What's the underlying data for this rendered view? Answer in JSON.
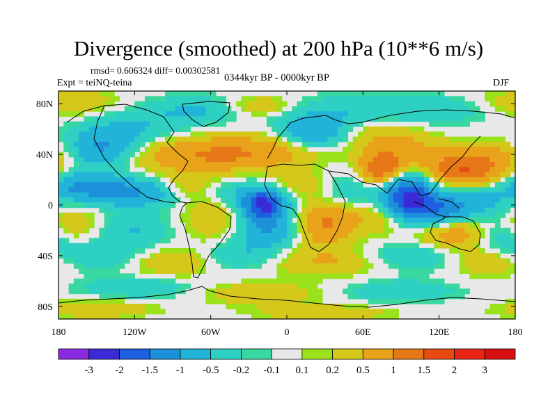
{
  "header": {
    "title": "Divergence (smoothed) at 200 hPa (10**6 m/s)",
    "stats": "rmsd= 0.606324  diff= 0.00302581",
    "experiment": "Expt = teiNQ-teina",
    "period": "0344kyr BP - 0000kyr BP",
    "season": "DJF"
  },
  "chart_data": {
    "type": "heatmap",
    "title": "Divergence (smoothed) at 200 hPa (10**6 m/s)",
    "xlabel": "",
    "ylabel": "",
    "xlim": [
      -180,
      180
    ],
    "ylim": [
      -90,
      90
    ],
    "x_ticks": [
      {
        "value": -180,
        "label": "180"
      },
      {
        "value": -120,
        "label": "120W"
      },
      {
        "value": -60,
        "label": "60W"
      },
      {
        "value": 0,
        "label": "0"
      },
      {
        "value": 60,
        "label": "60E"
      },
      {
        "value": 120,
        "label": "120E"
      },
      {
        "value": 180,
        "label": "180"
      }
    ],
    "y_ticks": [
      {
        "value": 80,
        "label": "80N"
      },
      {
        "value": 40,
        "label": "40N"
      },
      {
        "value": 0,
        "label": "0"
      },
      {
        "value": -40,
        "label": "40S"
      },
      {
        "value": -80,
        "label": "80S"
      }
    ],
    "colorbar": {
      "levels": [
        "-3",
        "-2",
        "-1.5",
        "-1",
        "-0.5",
        "-0.2",
        "-0.1",
        "0.1",
        "0.2",
        "0.5",
        "1",
        "1.5",
        "2",
        "3"
      ],
      "colors": [
        "#8a2be2",
        "#3a2bd6",
        "#1e5fe0",
        "#1c90d8",
        "#22b4d8",
        "#2fd0c4",
        "#39d8a0",
        "#e8e8e8",
        "#9be21c",
        "#d6c81a",
        "#e8a31a",
        "#e67818",
        "#e84a14",
        "#e82414",
        "#d61010"
      ]
    },
    "fields": [
      {
        "lon": -170,
        "lat": 80,
        "value": 0.5,
        "sx": 30,
        "sy": 8
      },
      {
        "lon": -120,
        "lat": 62,
        "value": -0.5,
        "sx": 30,
        "sy": 12
      },
      {
        "lon": -70,
        "lat": 75,
        "value": -0.5,
        "sx": 25,
        "sy": 8
      },
      {
        "lon": -20,
        "lat": 78,
        "value": 0.5,
        "sx": 20,
        "sy": 6
      },
      {
        "lon": 30,
        "lat": 70,
        "value": -0.5,
        "sx": 30,
        "sy": 10
      },
      {
        "lon": 110,
        "lat": 75,
        "value": -0.5,
        "sx": 40,
        "sy": 8
      },
      {
        "lon": -145,
        "lat": 45,
        "value": -1,
        "sx": 20,
        "sy": 10
      },
      {
        "lon": -100,
        "lat": 40,
        "value": 0.5,
        "sx": 25,
        "sy": 10
      },
      {
        "lon": -50,
        "lat": 40,
        "value": 1,
        "sx": 30,
        "sy": 10
      },
      {
        "lon": 0,
        "lat": 45,
        "value": 0.5,
        "sx": 25,
        "sy": 10
      },
      {
        "lon": 20,
        "lat": 55,
        "value": -1,
        "sx": 20,
        "sy": 8
      },
      {
        "lon": 70,
        "lat": 55,
        "value": 0.5,
        "sx": 25,
        "sy": 10
      },
      {
        "lon": 75,
        "lat": 28,
        "value": 1.5,
        "sx": 12,
        "sy": 10
      },
      {
        "lon": 100,
        "lat": 40,
        "value": 0.5,
        "sx": 20,
        "sy": 10
      },
      {
        "lon": 140,
        "lat": 28,
        "value": 1.5,
        "sx": 20,
        "sy": 10
      },
      {
        "lon": 170,
        "lat": 38,
        "value": 0.5,
        "sx": 15,
        "sy": 10
      },
      {
        "lon": -160,
        "lat": 15,
        "value": -1,
        "sx": 20,
        "sy": 8
      },
      {
        "lon": -120,
        "lat": 10,
        "value": -1,
        "sx": 25,
        "sy": 8
      },
      {
        "lon": -80,
        "lat": 15,
        "value": 0.5,
        "sx": 15,
        "sy": 8
      },
      {
        "lon": -30,
        "lat": 10,
        "value": -0.5,
        "sx": 25,
        "sy": 8
      },
      {
        "lon": -18,
        "lat": 0,
        "value": -2,
        "sx": 12,
        "sy": 8
      },
      {
        "lon": 10,
        "lat": 15,
        "value": 0.5,
        "sx": 20,
        "sy": 8
      },
      {
        "lon": 50,
        "lat": 12,
        "value": -0.5,
        "sx": 20,
        "sy": 10
      },
      {
        "lon": 95,
        "lat": 8,
        "value": -2,
        "sx": 14,
        "sy": 12
      },
      {
        "lon": 120,
        "lat": -5,
        "value": -1.5,
        "sx": 20,
        "sy": 10
      },
      {
        "lon": 155,
        "lat": 5,
        "value": -0.5,
        "sx": 20,
        "sy": 10
      },
      {
        "lon": -170,
        "lat": -15,
        "value": 0.5,
        "sx": 15,
        "sy": 10
      },
      {
        "lon": -120,
        "lat": -20,
        "value": -0.5,
        "sx": 20,
        "sy": 10
      },
      {
        "lon": -60,
        "lat": -10,
        "value": 0.5,
        "sx": 15,
        "sy": 12
      },
      {
        "lon": -15,
        "lat": -20,
        "value": -1,
        "sx": 15,
        "sy": 10
      },
      {
        "lon": 30,
        "lat": -15,
        "value": 1,
        "sx": 15,
        "sy": 12
      },
      {
        "lon": 70,
        "lat": -10,
        "value": 0.5,
        "sx": 20,
        "sy": 10
      },
      {
        "lon": 130,
        "lat": -20,
        "value": 1,
        "sx": 20,
        "sy": 10
      },
      {
        "lon": 170,
        "lat": -25,
        "value": -0.5,
        "sx": 15,
        "sy": 10
      },
      {
        "lon": -150,
        "lat": -40,
        "value": -0.5,
        "sx": 25,
        "sy": 8
      },
      {
        "lon": -90,
        "lat": -45,
        "value": 0.5,
        "sx": 25,
        "sy": 8
      },
      {
        "lon": -40,
        "lat": -40,
        "value": -0.5,
        "sx": 20,
        "sy": 8
      },
      {
        "lon": 30,
        "lat": -45,
        "value": 0.5,
        "sx": 30,
        "sy": 8
      },
      {
        "lon": 100,
        "lat": -40,
        "value": -0.5,
        "sx": 25,
        "sy": 8
      },
      {
        "lon": 160,
        "lat": -45,
        "value": 0.5,
        "sx": 20,
        "sy": 8
      },
      {
        "lon": -120,
        "lat": -65,
        "value": -0.5,
        "sx": 30,
        "sy": 6
      },
      {
        "lon": -20,
        "lat": -70,
        "value": 0.5,
        "sx": 30,
        "sy": 6
      },
      {
        "lon": 90,
        "lat": -68,
        "value": -0.5,
        "sx": 30,
        "sy": 6
      },
      {
        "lon": -150,
        "lat": -82,
        "value": 0.5,
        "sx": 30,
        "sy": 5
      },
      {
        "lon": 30,
        "lat": -85,
        "value": 0.5,
        "sx": 35,
        "sy": 4
      }
    ]
  }
}
